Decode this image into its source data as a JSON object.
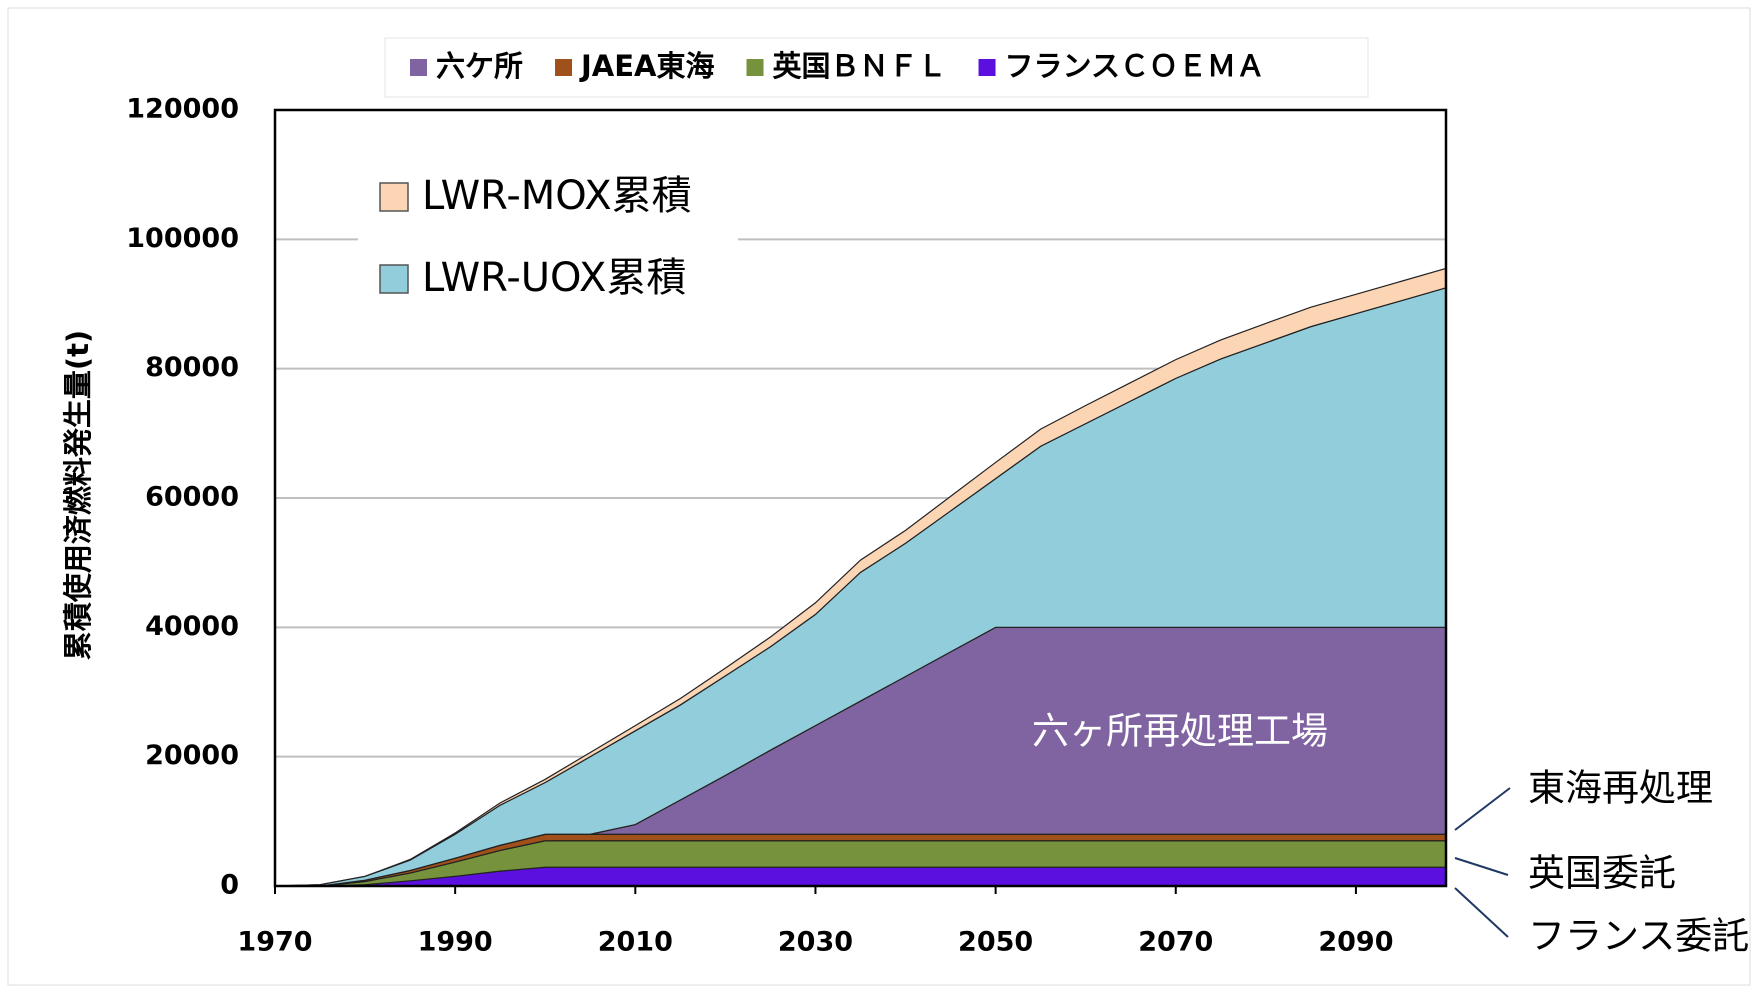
{
  "chart_data": {
    "type": "stacked_area",
    "y_label": "累積使用済燃料発生量(t)",
    "x": [
      1970,
      1975,
      1980,
      1985,
      1990,
      1995,
      2000,
      2005,
      2010,
      2015,
      2020,
      2025,
      2030,
      2035,
      2040,
      2045,
      2050,
      2055,
      2060,
      2065,
      2070,
      2075,
      2080,
      2085,
      2090,
      2095,
      2100
    ],
    "series": [
      {
        "name": "フランスＣＯＥＭＡ",
        "color": "#5b10e0",
        "values": [
          0,
          0,
          200,
          800,
          1500,
          2300,
          2900,
          2900,
          2900,
          2900,
          2900,
          2900,
          2900,
          2900,
          2900,
          2900,
          2900,
          2900,
          2900,
          2900,
          2900,
          2900,
          2900,
          2900,
          2900,
          2900,
          2900
        ]
      },
      {
        "name": "英国ＢＮＦＬ",
        "color": "#76923c",
        "values": [
          0,
          0,
          500,
          1200,
          2200,
          3200,
          4100,
          4100,
          4100,
          4100,
          4100,
          4100,
          4100,
          4100,
          4100,
          4100,
          4100,
          4100,
          4100,
          4100,
          4100,
          4100,
          4100,
          4100,
          4100,
          4100,
          4100
        ]
      },
      {
        "name": "JAEA東海",
        "color": "#a0501a",
        "values": [
          0,
          0,
          200,
          400,
          600,
          800,
          1000,
          1000,
          1000,
          1000,
          1000,
          1000,
          1000,
          1000,
          1000,
          1000,
          1000,
          1000,
          1000,
          1000,
          1000,
          1000,
          1000,
          1000,
          1000,
          1000,
          1000
        ]
      },
      {
        "name": "六ケ所",
        "color": "#8064a2",
        "values": [
          0,
          0,
          0,
          0,
          0,
          0,
          0,
          0,
          1500,
          5300,
          9100,
          13000,
          16800,
          20600,
          24400,
          28200,
          32000,
          32000,
          32000,
          32000,
          32000,
          32000,
          32000,
          32000,
          32000,
          32000,
          32000
        ]
      },
      {
        "name": "LWR-UOX累積",
        "color": "#92cddc",
        "values": [
          0,
          200,
          600,
          1600,
          3700,
          6200,
          8000,
          12000,
          14500,
          14700,
          15400,
          16000,
          17200,
          19900,
          20600,
          21800,
          23000,
          28000,
          31500,
          35000,
          38500,
          41500,
          44000,
          46500,
          48500,
          50500,
          52500
        ]
      },
      {
        "name": "LWR-MOX累積",
        "color": "#fcd5b5",
        "values": [
          0,
          0,
          0,
          100,
          200,
          350,
          500,
          650,
          800,
          1000,
          1200,
          1500,
          1800,
          1900,
          2000,
          2250,
          2500,
          2650,
          2800,
          2850,
          2900,
          2950,
          3000,
          3000,
          3000,
          3000,
          3000
        ]
      }
    ],
    "annotations": [
      "六ヶ所再処理工場",
      "東海再処理",
      "英国委託",
      "フランス委託"
    ],
    "xlim": [
      1970,
      2100
    ],
    "xticks": [
      1970,
      1990,
      2010,
      2030,
      2050,
      2070,
      2090
    ],
    "ylim": [
      0,
      120000
    ],
    "yticks": [
      0,
      20000,
      40000,
      60000,
      80000,
      100000,
      120000
    ],
    "grid": true
  }
}
